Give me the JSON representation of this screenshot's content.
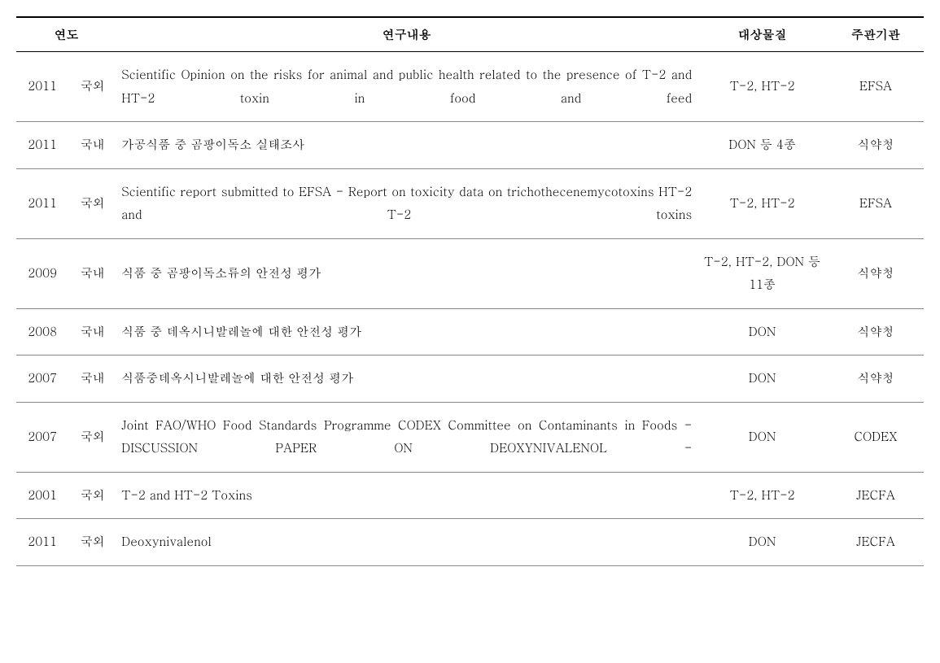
{
  "columns": {
    "year": "연도",
    "content": "연구내용",
    "substance": "대상물질",
    "organization": "주관기관"
  },
  "rows": [
    {
      "year": "2011",
      "region": "국외",
      "content": "Scientific Opinion on the risks for animal and public health related to the presence of T-2 and HT-2 toxin in food and feed",
      "substance": "T-2, HT-2",
      "organization": "EFSA",
      "spread": true
    },
    {
      "year": "2011",
      "region": "국내",
      "content": "가공식품 중 곰팡이독소 실태조사",
      "substance": "DON 등 4종",
      "organization": "식약청",
      "spread": false
    },
    {
      "year": "2011",
      "region": "국외",
      "content": "Scientific report submitted to EFSA -  Report on toxicity data on trichothecenemycotoxins HT-2 and T-2 toxins",
      "substance": "T-2, HT-2",
      "organization": "EFSA",
      "spread": true
    },
    {
      "year": "2009",
      "region": "국내",
      "content": "식품 중 곰팡이독소류의 안전성 평가",
      "substance": "T-2, HT-2, DON 등 11종",
      "organization": "식약청",
      "spread": false
    },
    {
      "year": "2008",
      "region": "국내",
      "content": "식품 중 데옥시니발레놀에 대한 안전성 평가",
      "substance": "DON",
      "organization": "식약청",
      "spread": false
    },
    {
      "year": "2007",
      "region": "국내",
      "content": "식품중데옥시니발레놀에 대한 안전성 평가",
      "substance": "DON",
      "organization": "식약청",
      "spread": false
    },
    {
      "year": "2007",
      "region": "국외",
      "content": "Joint FAO/WHO Food Standards Programme CODEX Committee on Contaminants in Foods - DISCUSSION PAPER ON DEOXYNIVALENOL -",
      "substance": "DON",
      "organization": "CODEX",
      "spread": true
    },
    {
      "year": "2001",
      "region": "국외",
      "content": "T-2 and HT-2 Toxins",
      "substance": "T-2, HT-2",
      "organization": "JECFA",
      "spread": false
    },
    {
      "year": "2011",
      "region": "국외",
      "content": "Deoxynivalenol",
      "substance": "DON",
      "organization": "JECFA",
      "spread": false
    }
  ]
}
